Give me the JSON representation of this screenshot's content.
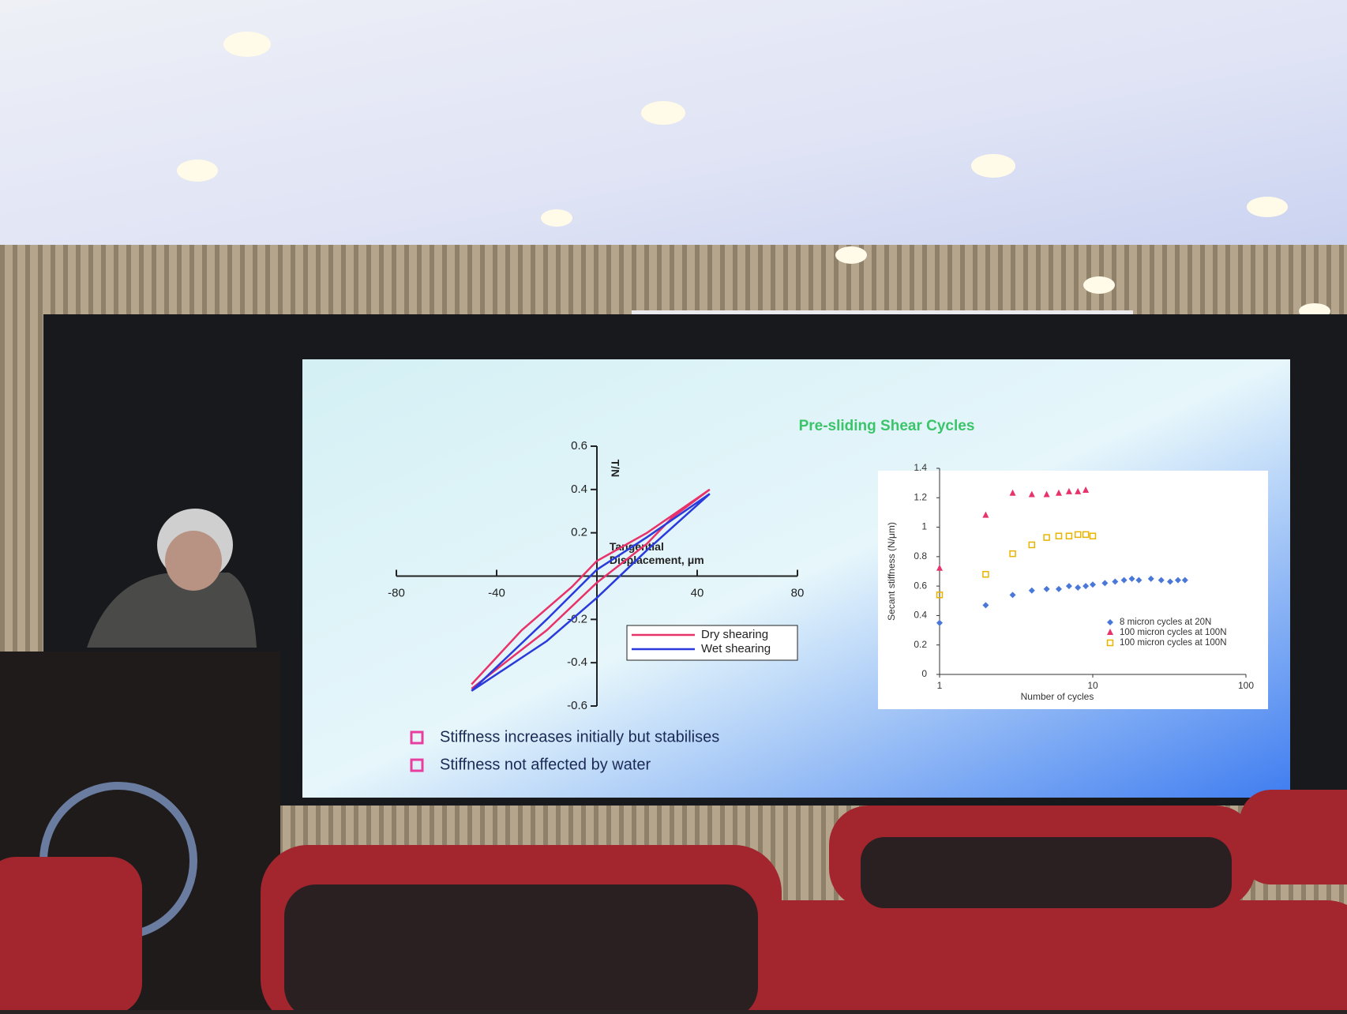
{
  "slide": {
    "title": "Pre-sliding Shear Cycles",
    "bullets": [
      "Stiffness increases initially but stabilises",
      "Stiffness not affected by  water"
    ]
  },
  "chart_data": [
    {
      "type": "line",
      "x_label": [
        "Tangential",
        "Displacement, μm"
      ],
      "y_label": "T/N",
      "xlim": [
        -80,
        80
      ],
      "xticks": [
        -80,
        -40,
        40,
        80
      ],
      "ylim": [
        -0.6,
        0.6
      ],
      "yticks": [
        -0.6,
        -0.4,
        -0.2,
        0.2,
        0.4,
        0.6
      ],
      "legend": "lower right",
      "series": [
        {
          "name": "Dry shearing",
          "color": "#e8326a",
          "x": [
            -50,
            -30,
            -10,
            0,
            20,
            30,
            45,
            30,
            20,
            0,
            -20,
            -50
          ],
          "values": [
            -0.5,
            -0.25,
            -0.05,
            0.07,
            0.2,
            0.28,
            0.4,
            0.27,
            0.15,
            -0.03,
            -0.25,
            -0.52
          ]
        },
        {
          "name": "Wet shearing",
          "color": "#2a3adb",
          "x": [
            -50,
            -20,
            0,
            20,
            45,
            20,
            0,
            -20,
            -50
          ],
          "values": [
            -0.53,
            -0.2,
            0.03,
            0.18,
            0.38,
            0.12,
            -0.1,
            -0.3,
            -0.53
          ]
        }
      ]
    },
    {
      "type": "scatter",
      "xscale": "log",
      "x_label": "Number of cycles",
      "y_label": "Secant stiffness (N/μm)",
      "xlim": [
        1,
        100
      ],
      "xticks": [
        1,
        10,
        100
      ],
      "ylim": [
        0,
        1.4
      ],
      "yticks": [
        0,
        0.2,
        0.4,
        0.6,
        0.8,
        1,
        1.2,
        1.4
      ],
      "legend": "lower right",
      "series": [
        {
          "name": "8 micron cycles at 20N",
          "color": "#4a78d8",
          "marker": "diamond",
          "x": [
            1,
            2,
            3,
            4,
            5,
            6,
            7,
            8,
            9,
            10,
            12,
            14,
            16,
            18,
            20,
            24,
            28,
            32,
            36,
            40
          ],
          "values": [
            0.35,
            0.47,
            0.54,
            0.57,
            0.58,
            0.58,
            0.6,
            0.59,
            0.6,
            0.61,
            0.62,
            0.63,
            0.64,
            0.65,
            0.64,
            0.65,
            0.64,
            0.63,
            0.64,
            0.64
          ]
        },
        {
          "name": "100 micron cycles at 100N",
          "color": "#e8326a",
          "marker": "triangle",
          "x": [
            1,
            2,
            3,
            4,
            5,
            6,
            7,
            8,
            9
          ],
          "values": [
            0.72,
            1.08,
            1.23,
            1.22,
            1.22,
            1.23,
            1.24,
            1.24,
            1.25
          ]
        },
        {
          "name": "100 micron cycles at 100N",
          "color": "#e8b400",
          "marker": "square",
          "x": [
            1,
            2,
            3,
            4,
            5,
            6,
            7,
            8,
            9,
            10
          ],
          "values": [
            0.54,
            0.68,
            0.82,
            0.88,
            0.93,
            0.94,
            0.94,
            0.95,
            0.95,
            0.94
          ]
        }
      ]
    }
  ]
}
